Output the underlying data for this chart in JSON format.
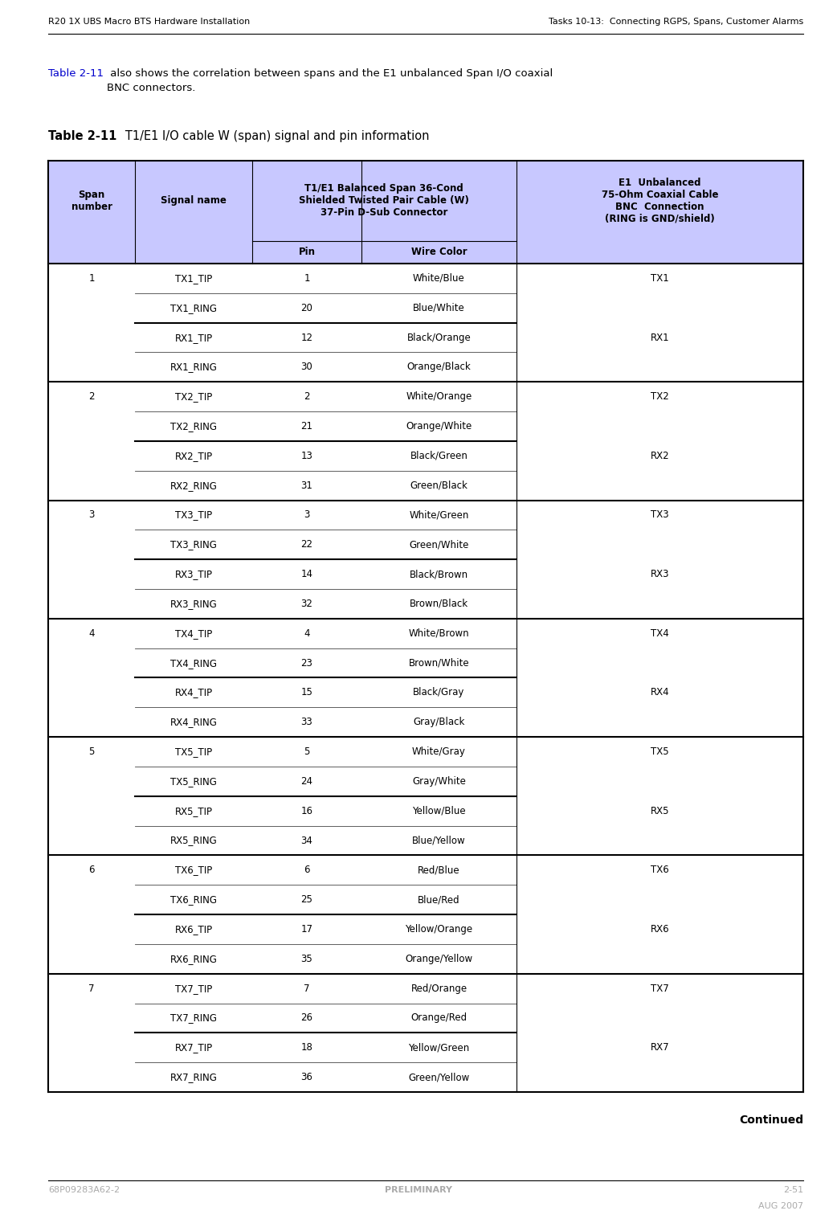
{
  "page_width": 10.42,
  "page_height": 15.27,
  "bg_color": "#ffffff",
  "header_left": "R20 1X UBS Macro BTS Hardware Installation",
  "header_right": "Tasks 10-13:  Connecting RGPS, Spans, Customer Alarms",
  "footer_left": "68P09283A62-2",
  "footer_center": "PRELIMINARY",
  "footer_right": "2-51",
  "footer_right2": "AUG 2007",
  "intro_text_part1": "Table 2-11",
  "intro_text_part2": " also shows the correlation between spans and the E1 unbalanced Span I/O coaxial\nBNC connectors.",
  "table_title_bold": "Table 2-11",
  "table_title_rest": "   T1/E1 I/O cable W (span) signal and pin information",
  "header_bg": "#c8c8ff",
  "rows": [
    [
      "1",
      "TX1_TIP",
      "1",
      "White/Blue",
      "TX1"
    ],
    [
      "",
      "TX1_RING",
      "20",
      "Blue/White",
      ""
    ],
    [
      "",
      "RX1_TIP",
      "12",
      "Black/Orange",
      "RX1"
    ],
    [
      "",
      "RX1_RING",
      "30",
      "Orange/Black",
      ""
    ],
    [
      "2",
      "TX2_TIP",
      "2",
      "White/Orange",
      "TX2"
    ],
    [
      "",
      "TX2_RING",
      "21",
      "Orange/White",
      ""
    ],
    [
      "",
      "RX2_TIP",
      "13",
      "Black/Green",
      "RX2"
    ],
    [
      "",
      "RX2_RING",
      "31",
      "Green/Black",
      ""
    ],
    [
      "3",
      "TX3_TIP",
      "3",
      "White/Green",
      "TX3"
    ],
    [
      "",
      "TX3_RING",
      "22",
      "Green/White",
      ""
    ],
    [
      "",
      "RX3_TIP",
      "14",
      "Black/Brown",
      "RX3"
    ],
    [
      "",
      "RX3_RING",
      "32",
      "Brown/Black",
      ""
    ],
    [
      "4",
      "TX4_TIP",
      "4",
      "White/Brown",
      "TX4"
    ],
    [
      "",
      "TX4_RING",
      "23",
      "Brown/White",
      ""
    ],
    [
      "",
      "RX4_TIP",
      "15",
      "Black/Gray",
      "RX4"
    ],
    [
      "",
      "RX4_RING",
      "33",
      "Gray/Black",
      ""
    ],
    [
      "5",
      "TX5_TIP",
      "5",
      "White/Gray",
      "TX5"
    ],
    [
      "",
      "TX5_RING",
      "24",
      "Gray/White",
      ""
    ],
    [
      "",
      "RX5_TIP",
      "16",
      "Yellow/Blue",
      "RX5"
    ],
    [
      "",
      "RX5_RING",
      "34",
      "Blue/Yellow",
      ""
    ],
    [
      "6",
      "TX6_TIP",
      "6",
      "Red/Blue",
      "TX6"
    ],
    [
      "",
      "TX6_RING",
      "25",
      "Blue/Red",
      ""
    ],
    [
      "",
      "RX6_TIP",
      "17",
      "Yellow/Orange",
      "RX6"
    ],
    [
      "",
      "RX6_RING",
      "35",
      "Orange/Yellow",
      ""
    ],
    [
      "7",
      "TX7_TIP",
      "7",
      "Red/Orange",
      "TX7"
    ],
    [
      "",
      "TX7_RING",
      "26",
      "Orange/Red",
      ""
    ],
    [
      "",
      "RX7_TIP",
      "18",
      "Yellow/Green",
      "RX7"
    ],
    [
      "",
      "RX7_RING",
      "36",
      "Green/Yellow",
      ""
    ]
  ],
  "continued_text": "Continued",
  "hdr_fs": 8.0,
  "footer_fs": 8.0,
  "tbl_hdr_fs": 8.5,
  "tbl_data_fs": 8.5,
  "intro_fs": 9.5,
  "title_fs": 10.5,
  "link_color": "#0000cc"
}
